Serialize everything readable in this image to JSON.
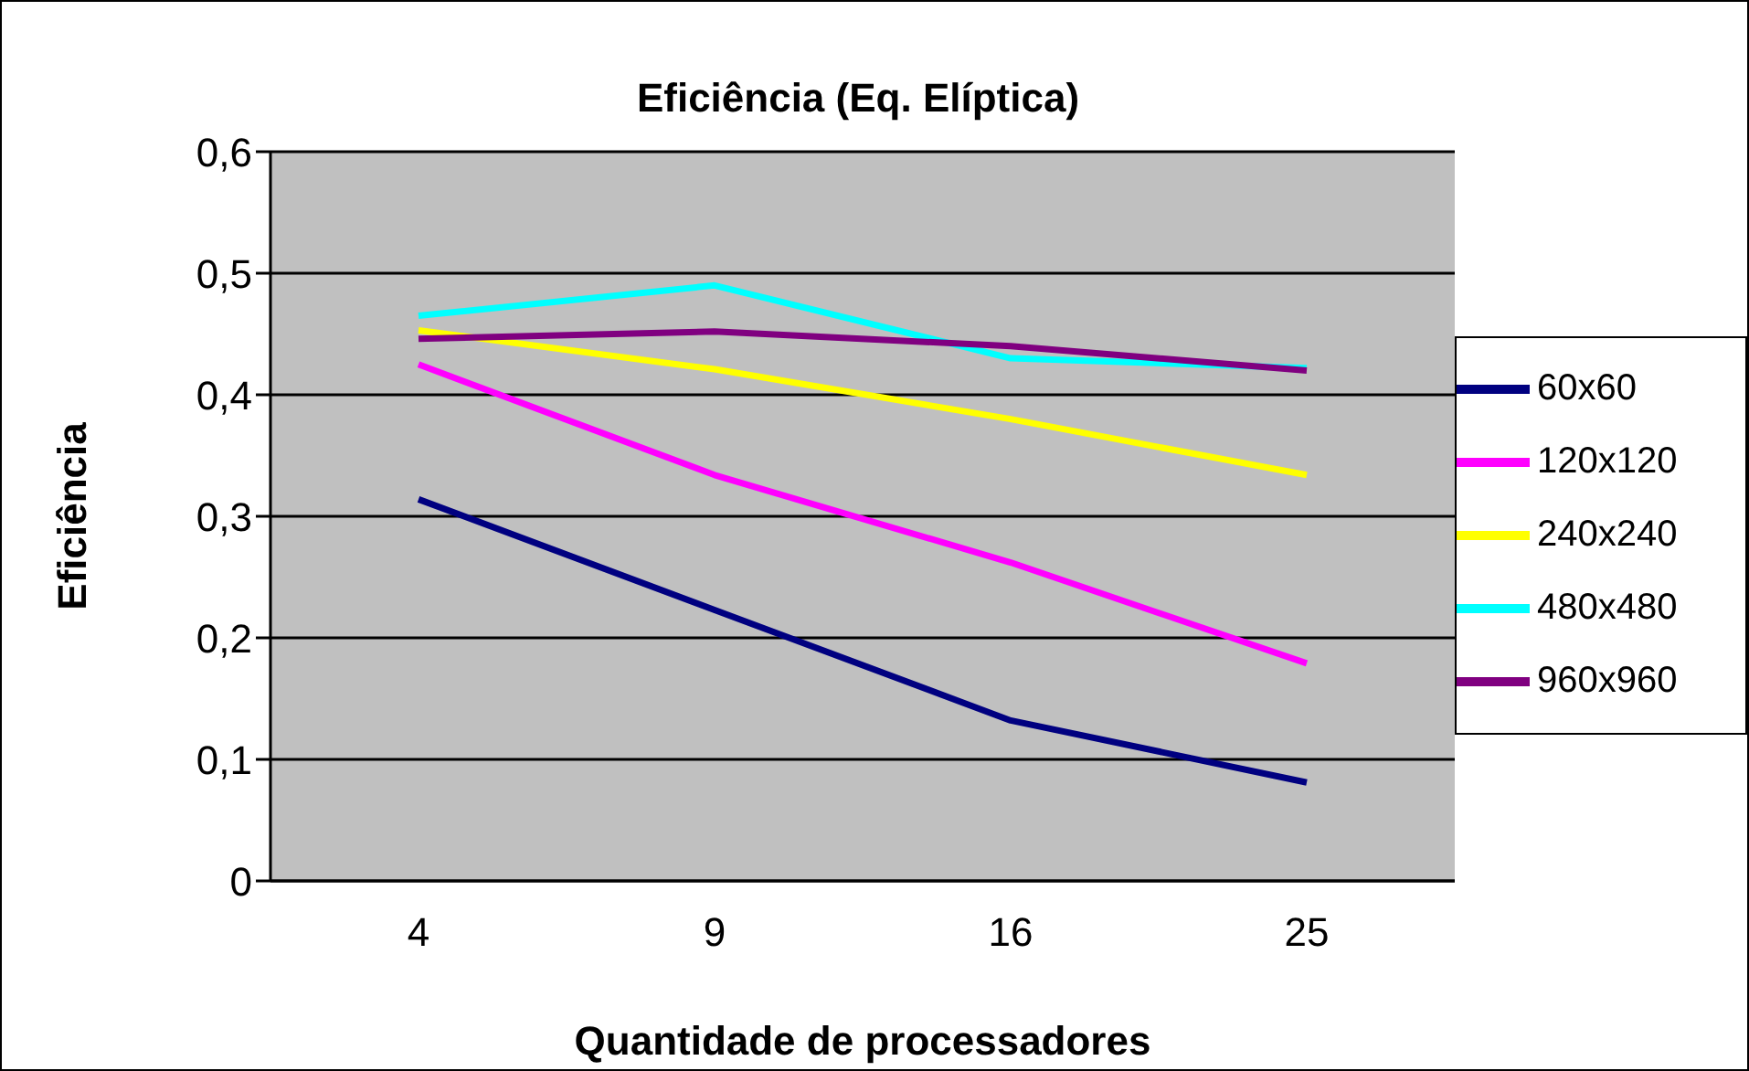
{
  "chart_data": {
    "type": "line",
    "title": "Eficiência (Eq. Elíptica)",
    "xlabel": "Quantidade de processadores",
    "ylabel": "Eficiência",
    "categories": [
      "4",
      "9",
      "16",
      "25"
    ],
    "series": [
      {
        "name": "60x60",
        "color": "#000080",
        "values": [
          0.314,
          0.223,
          0.132,
          0.081
        ]
      },
      {
        "name": "120x120",
        "color": "#ff00ff",
        "values": [
          0.425,
          0.334,
          0.262,
          0.179
        ]
      },
      {
        "name": "240x240",
        "color": "#ffff00",
        "values": [
          0.453,
          0.421,
          0.38,
          0.334
        ]
      },
      {
        "name": "480x480",
        "color": "#00ffff",
        "values": [
          0.465,
          0.49,
          0.43,
          0.422
        ]
      },
      {
        "name": "960x960",
        "color": "#800080",
        "values": [
          0.446,
          0.452,
          0.44,
          0.42
        ]
      }
    ],
    "ylim": [
      0,
      0.6
    ],
    "yticks": [
      0,
      {
        "value": 0.1,
        "label": "0,1"
      },
      {
        "value": 0.2,
        "label": "0,2"
      },
      {
        "value": 0.3,
        "label": "0,3"
      },
      {
        "value": 0.4,
        "label": "0,4"
      },
      {
        "value": 0.5,
        "label": "0,5"
      },
      {
        "value": 0.6,
        "label": "0,6"
      }
    ],
    "grid": "y",
    "legend": "right",
    "marker": "none",
    "line_style": "solid"
  }
}
